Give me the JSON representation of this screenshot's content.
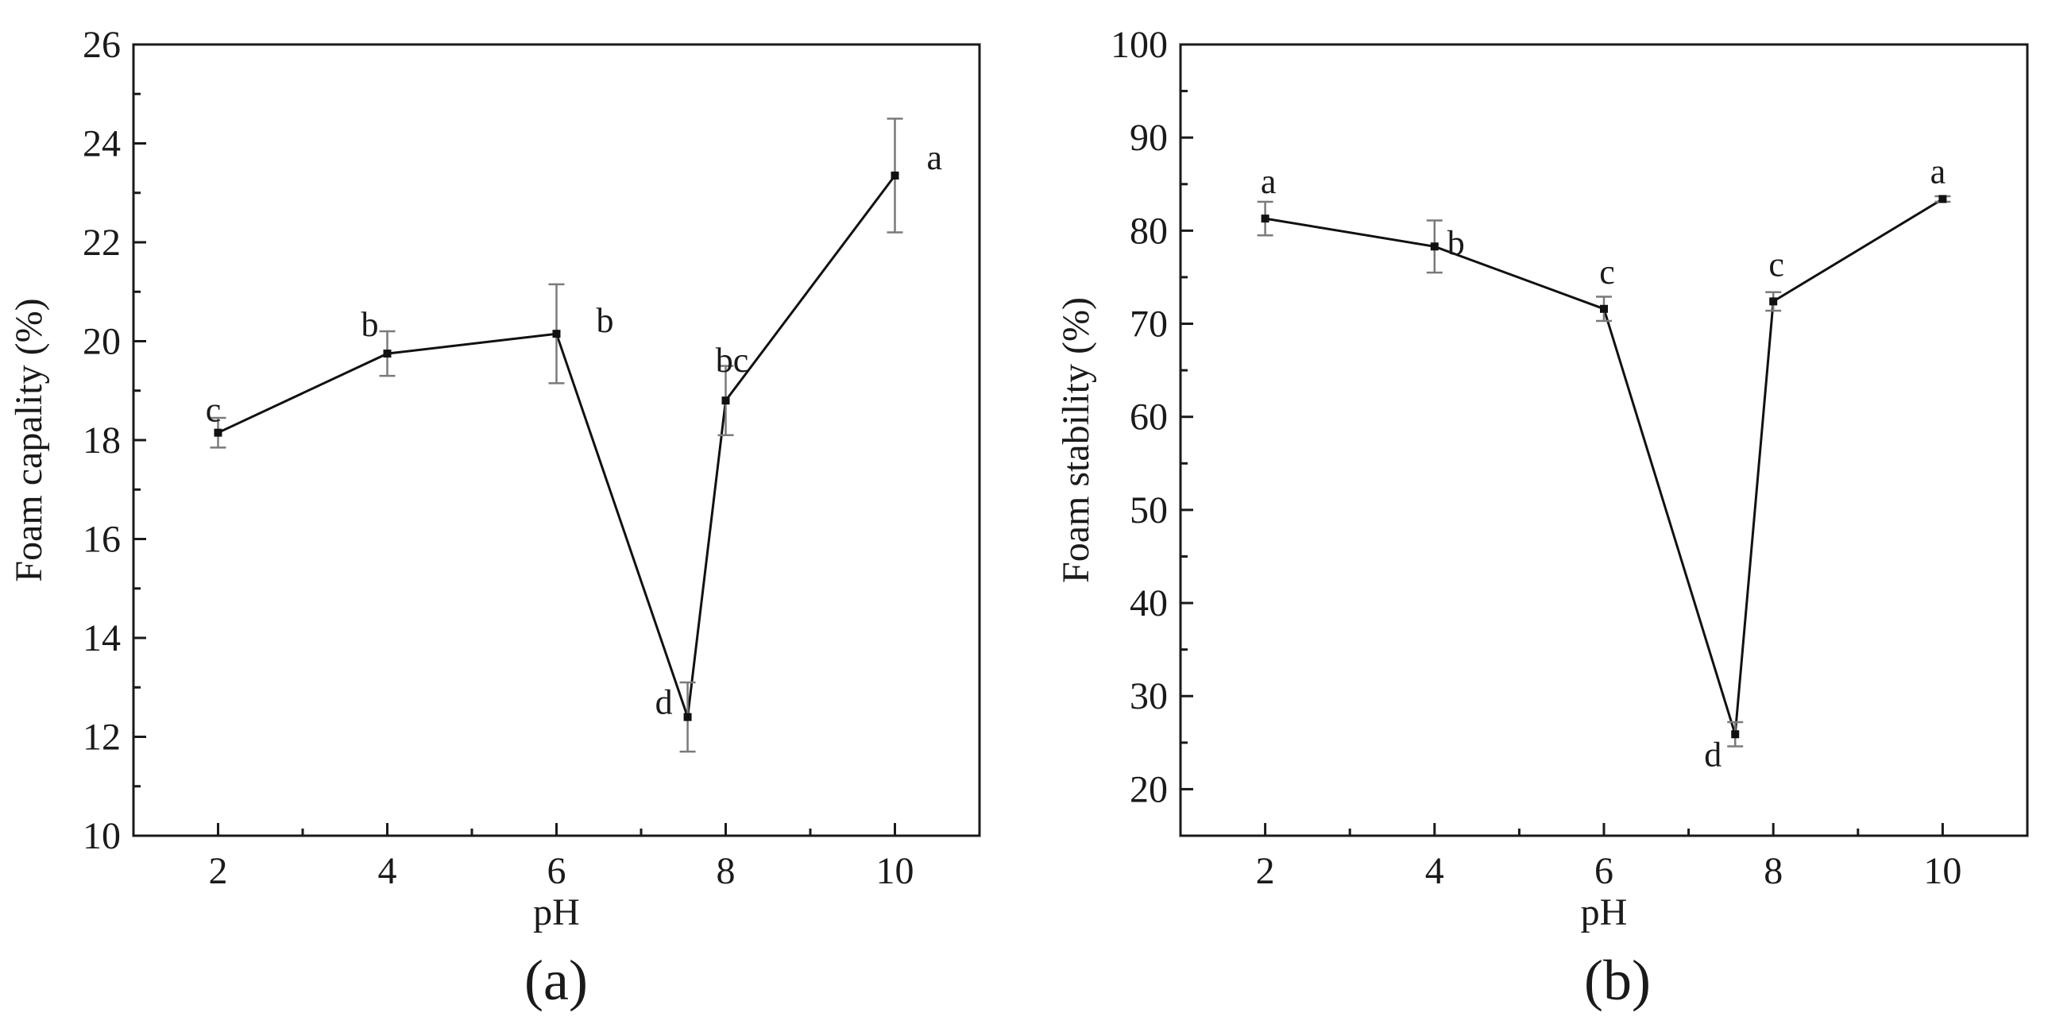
{
  "chart_data": [
    {
      "type": "line",
      "panel_label": "(a)",
      "xlabel": "pH",
      "ylabel": "Foam capality (%)",
      "xlim": [
        1,
        11
      ],
      "ylim": [
        10,
        26
      ],
      "xticks": [
        2,
        4,
        6,
        8,
        10
      ],
      "yticks": [
        10,
        12,
        14,
        16,
        18,
        20,
        22,
        24,
        26
      ],
      "grid": false,
      "series": [
        {
          "x": [
            2,
            4,
            6,
            7.55,
            8,
            10
          ],
          "y": [
            18.15,
            19.75,
            20.15,
            12.4,
            18.8,
            23.35
          ],
          "error": [
            0.3,
            0.45,
            1.0,
            0.7,
            0.7,
            1.15
          ],
          "significance": [
            "c",
            "b",
            "b",
            "d",
            "bc",
            "a"
          ]
        }
      ]
    },
    {
      "type": "line",
      "panel_label": "(b)",
      "xlabel": "pH",
      "ylabel": "Foam stability (%)",
      "xlim": [
        1,
        11
      ],
      "ylim": [
        15,
        100
      ],
      "xticks": [
        2,
        4,
        6,
        8,
        10
      ],
      "yticks": [
        20,
        30,
        40,
        50,
        60,
        70,
        80,
        90,
        100
      ],
      "grid": false,
      "series": [
        {
          "x": [
            2,
            4,
            6,
            7.55,
            8,
            10
          ],
          "y": [
            81.3,
            78.3,
            71.6,
            25.9,
            72.4,
            83.4
          ],
          "error": [
            1.8,
            2.8,
            1.3,
            1.3,
            1.0,
            0.3
          ],
          "significance": [
            "a",
            "b",
            "c",
            "d",
            "c",
            "a"
          ]
        }
      ]
    }
  ]
}
